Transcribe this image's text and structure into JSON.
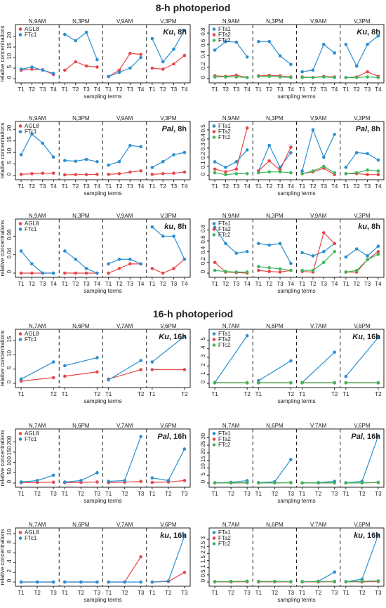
{
  "titles": {
    "p8": "8-h photoperiod",
    "p16": "16-h photoperiod"
  },
  "colors": {
    "AGL8": "#e8474a",
    "FTc1": "#2a8fd0",
    "FTa1": "#2a8fd0",
    "FTa2": "#e8474a",
    "FTc2": "#3cb85a"
  },
  "chart_data": [
    {
      "type": "line",
      "label": "Ku, 8h",
      "groups": [
        "N,9AM",
        "N,3PM",
        "V,9AM",
        "V,3PM"
      ],
      "terms": [
        "T1",
        "T2",
        "T3",
        "T4"
      ],
      "xlabel": "sampling terms",
      "ylabel": "relative concentrations",
      "yticks": [
        0,
        5,
        10,
        15,
        20
      ],
      "ylim": [
        0,
        23
      ],
      "series": [
        {
          "name": "AGL8",
          "values": [
            [
              4,
              4.5,
              4.2,
              2
            ],
            [
              4,
              8,
              6,
              5.5
            ],
            [
              1,
              4,
              12,
              11.5
            ],
            [
              5,
              4.5,
              7,
              11
            ]
          ]
        },
        {
          "name": "FTc1",
          "values": [
            [
              4.5,
              5.5,
              4,
              2.5
            ],
            [
              21,
              18,
              22,
              9
            ],
            [
              1,
              3,
              5,
              10
            ],
            [
              19,
              8,
              14,
              23
            ]
          ]
        }
      ]
    },
    {
      "type": "line",
      "label": "Ku, 8h",
      "groups": [
        "N,9AM",
        "N,3PM",
        "V,9AM",
        "V,3PM"
      ],
      "terms": [
        "T1",
        "T2",
        "T3",
        "T4"
      ],
      "xlabel": "sampling terms",
      "ylabel": "",
      "yticks": [
        0,
        0.2,
        0.4,
        0.6,
        0.8
      ],
      "ylim": [
        0,
        0.85
      ],
      "series": [
        {
          "name": "FTa1",
          "values": [
            [
              0.5,
              0.65,
              0.64,
              0.38
            ],
            [
              0.65,
              0.65,
              0.4,
              0.25
            ],
            [
              0.12,
              0.15,
              0.6,
              0.45
            ],
            [
              0.6,
              0.22,
              0.6,
              0.75
            ]
          ]
        },
        {
          "name": "FTa2",
          "values": [
            [
              0.05,
              0.04,
              0.06,
              0.02
            ],
            [
              0.05,
              0.06,
              0.05,
              0.03
            ],
            [
              0.03,
              0.02,
              0.04,
              0.03
            ],
            [
              0.02,
              0.03,
              0.12,
              0.04
            ]
          ]
        },
        {
          "name": "FTc2",
          "values": [
            [
              0.03,
              0.03,
              0.03,
              0.02
            ],
            [
              0.04,
              0.04,
              0.03,
              0.02
            ],
            [
              0.02,
              0.02,
              0.03,
              0.02
            ],
            [
              0.02,
              0.02,
              0.03,
              0.02
            ]
          ]
        }
      ]
    },
    {
      "type": "line",
      "label": "Pal, 8h",
      "groups": [
        "N,9AM",
        "N,3PM",
        "V,9AM",
        "V,3PM"
      ],
      "terms": [
        "T1",
        "T2",
        "T3",
        "T4"
      ],
      "xlabel": "sampling terms",
      "ylabel": "relative concentrations",
      "yticks": [
        0,
        5,
        10,
        15,
        20
      ],
      "ylim": [
        0,
        21
      ],
      "series": [
        {
          "name": "AGL8",
          "values": [
            [
              0.5,
              0.8,
              1,
              1
            ],
            [
              0.3,
              0.4,
              0.4,
              0.5
            ],
            [
              0.5,
              0.8,
              1.5,
              2
            ],
            [
              0.5,
              0.8,
              1,
              1.5
            ]
          ]
        },
        {
          "name": "FTc1",
          "values": [
            [
              9,
              18,
              14,
              8
            ],
            [
              6.5,
              6.2,
              7,
              6
            ],
            [
              4.5,
              6,
              13,
              12.5
            ],
            [
              3.5,
              6,
              9,
              10
            ]
          ]
        }
      ]
    },
    {
      "type": "line",
      "label": "Pal, 8h",
      "groups": [
        "N,9AM",
        "N,3PM",
        "V,9AM",
        "V,3PM"
      ],
      "terms": [
        "T1",
        "T2",
        "T3",
        "T4"
      ],
      "xlabel": "sampling terms",
      "ylabel": "",
      "yticks": [
        0,
        0.1,
        0.2,
        0.3,
        0.4,
        0.5
      ],
      "ylim": [
        0,
        0.53
      ],
      "series": [
        {
          "name": "FTa1",
          "values": [
            [
              0.15,
              0.09,
              0.15,
              0.28
            ],
            [
              0.05,
              0.33,
              0.09,
              0.25
            ],
            [
              0.05,
              0.5,
              0.2,
              0.45
            ],
            [
              0.09,
              0.25,
              0.24,
              0.17
            ]
          ]
        },
        {
          "name": "FTa2",
          "values": [
            [
              0.07,
              0.04,
              0.07,
              0.52
            ],
            [
              0.05,
              0.16,
              0.06,
              0.31
            ],
            [
              0.02,
              0.04,
              0.08,
              0.01
            ],
            [
              0.02,
              0.02,
              0.01,
              0.01
            ]
          ]
        },
        {
          "name": "FTc2",
          "values": [
            [
              0.03,
              0.01,
              0.02,
              0.02
            ],
            [
              0.03,
              0.04,
              0.04,
              0.03
            ],
            [
              0.02,
              0.05,
              0.1,
              0.03
            ],
            [
              0.02,
              0.03,
              0.06,
              0.05
            ]
          ]
        }
      ]
    },
    {
      "type": "line",
      "label": "ku, 8h",
      "groups": [
        "N,9AM",
        "N,3PM",
        "V,9AM",
        "V,3PM"
      ],
      "terms": [
        "T1",
        "T2",
        "T3",
        "T4"
      ],
      "xlabel": "sampling terms",
      "ylabel": "relative concentrations",
      "yticks": [
        0,
        0.04,
        0.08
      ],
      "ylim": [
        0,
        0.105
      ],
      "series": [
        {
          "name": "AGL8",
          "values": [
            [
              0,
              0,
              0,
              0
            ],
            [
              0,
              0,
              0,
              0
            ],
            [
              0,
              0.01,
              0.02,
              0.02
            ],
            [
              0.01,
              0,
              0.01,
              0.03
            ]
          ]
        },
        {
          "name": "FTc1",
          "values": [
            [
              0.048,
              0.02,
              0,
              0
            ],
            [
              0.048,
              0.03,
              0.01,
              0
            ],
            [
              0.02,
              0.03,
              0.03,
              0.02
            ],
            [
              0.1,
              0.08,
              0.08,
              0.03
            ]
          ]
        }
      ]
    },
    {
      "type": "line",
      "label": "ku, 8h",
      "groups": [
        "N,9AM",
        "N,3PM",
        "V,9AM",
        "V,3PM"
      ],
      "terms": [
        "T1",
        "T2",
        "T3",
        "T4"
      ],
      "xlabel": "sampling terms",
      "ylabel": "",
      "yticks": [
        0,
        0.2,
        0.4,
        0.6,
        0.8
      ],
      "ylim": [
        0,
        0.9
      ],
      "series": [
        {
          "name": "FTa1",
          "values": [
            [
              0.85,
              0.55,
              0.37,
              0.4
            ],
            [
              0.55,
              0.52,
              0.55,
              0.18
            ],
            [
              0.38,
              0.32,
              0.4,
              0.55
            ],
            [
              0.3,
              0.45,
              0.32,
              0.5
            ]
          ]
        },
        {
          "name": "FTa2",
          "values": [
            [
              0.2,
              0.02,
              0.01,
              0
            ],
            [
              0.05,
              0.03,
              0.02,
              0.05
            ],
            [
              0.03,
              0.02,
              0.75,
              0.55
            ],
            [
              0.02,
              0.02,
              0.25,
              0.4
            ]
          ]
        },
        {
          "name": "FTc2",
          "values": [
            [
              0.05,
              0.03,
              0.02,
              0.02
            ],
            [
              0.12,
              0.1,
              0.08,
              0.05
            ],
            [
              0.05,
              0.05,
              0.2,
              0.4
            ],
            [
              0.02,
              0.05,
              0.25,
              0.35
            ]
          ]
        }
      ]
    },
    {
      "type": "line",
      "label": "Ku, 16h",
      "groups": [
        "N,7AM",
        "N,6PM",
        "V,7AM",
        "V,6PM"
      ],
      "terms": [
        "T1",
        "T2"
      ],
      "xlabel": "sampling terms",
      "ylabel": "relative concentrations",
      "yticks": [
        0,
        5,
        10,
        15
      ],
      "ylim": [
        0,
        17
      ],
      "series": [
        {
          "name": "AGL8",
          "values": [
            [
              0.8,
              2
            ],
            [
              2.5,
              4
            ],
            [
              1.5,
              4.8
            ],
            [
              4.8,
              4.8
            ]
          ]
        },
        {
          "name": "FTc1",
          "values": [
            [
              1.5,
              7.5
            ],
            [
              6.2,
              9
            ],
            [
              1.2,
              8
            ],
            [
              7.5,
              16.5
            ]
          ]
        }
      ]
    },
    {
      "type": "line",
      "label": "Ku, 16h",
      "groups": [
        "N,7AM",
        "N,6PM",
        "V,7AM",
        "V,6PM"
      ],
      "terms": [
        "T1",
        "T2"
      ],
      "xlabel": "sampling terms",
      "ylabel": "",
      "yticks": [
        0,
        1,
        2,
        3,
        4,
        5
      ],
      "ylim": [
        0,
        5.6
      ],
      "series": [
        {
          "name": "FTa1",
          "values": [
            [
              0.1,
              5.5
            ],
            [
              0.3,
              2.6
            ],
            [
              0.1,
              3.6
            ],
            [
              0.8,
              5.3
            ]
          ]
        },
        {
          "name": "FTa2",
          "values": [
            [
              0.05,
              0.05
            ],
            [
              0.05,
              0.05
            ],
            [
              0.05,
              0.05
            ],
            [
              0.05,
              0.05
            ]
          ]
        },
        {
          "name": "FTc2",
          "values": [
            [
              0.08,
              0.08
            ],
            [
              0.08,
              0.08
            ],
            [
              0.08,
              0.08
            ],
            [
              0.08,
              0.08
            ]
          ]
        }
      ]
    },
    {
      "type": "line",
      "label": "Pal, 16h",
      "groups": [
        "N,7AM",
        "N,6PM",
        "V,7AM",
        "V,6PM"
      ],
      "terms": [
        "T1",
        "T2",
        "T3"
      ],
      "xlabel": "sampling terms",
      "ylabel": "relative concentrations",
      "yticks": [
        0,
        50,
        100,
        150,
        200
      ],
      "ylim": [
        0,
        235
      ],
      "series": [
        {
          "name": "AGL8",
          "values": [
            [
              2,
              3,
              4
            ],
            [
              2,
              3,
              5
            ],
            [
              2,
              4,
              8
            ],
            [
              3,
              5,
              12
            ]
          ]
        },
        {
          "name": "FTc1",
          "values": [
            [
              5,
              12,
              38
            ],
            [
              5,
              12,
              50
            ],
            [
              8,
              12,
              225
            ],
            [
              25,
              12,
              165
            ]
          ]
        }
      ]
    },
    {
      "type": "line",
      "label": "Pal, 16h",
      "groups": [
        "N,7AM",
        "N,6PM",
        "V,7AM",
        "V,6PM"
      ],
      "terms": [
        "T1",
        "T2",
        "T3"
      ],
      "xlabel": "sampling terms",
      "ylabel": "",
      "yticks": [
        0,
        5,
        10,
        15,
        20,
        25,
        30
      ],
      "ylim": [
        0,
        32
      ],
      "series": [
        {
          "name": "FTa1",
          "values": [
            [
              0.2,
              0.5,
              1.6
            ],
            [
              0.3,
              0.8,
              15.5
            ],
            [
              0.1,
              0.3,
              1.1
            ],
            [
              0.2,
              1.1,
              31
            ]
          ]
        },
        {
          "name": "FTa2",
          "values": [
            [
              0.05,
              0.05,
              0.1
            ],
            [
              0.05,
              0.1,
              0.2
            ],
            [
              0.05,
              0.05,
              0.1
            ],
            [
              0.05,
              0.1,
              0.3
            ]
          ]
        },
        {
          "name": "FTc2",
          "values": [
            [
              0.1,
              0.1,
              0.3
            ],
            [
              0.1,
              0.1,
              0.3
            ],
            [
              0.1,
              0.1,
              0.2
            ],
            [
              0.1,
              0.1,
              0.5
            ]
          ]
        }
      ]
    },
    {
      "type": "line",
      "label": "ku, 16h",
      "groups": [
        "N,7AM",
        "N,6PM",
        "V,7AM",
        "V,6PM"
      ],
      "terms": [
        "T1",
        "T2",
        "T3"
      ],
      "xlabel": "sampling terms",
      "ylabel": "relative concentrations",
      "yticks": [
        0,
        2,
        4,
        6,
        8,
        10
      ],
      "ylim": [
        0,
        10
      ],
      "series": [
        {
          "name": "AGL8",
          "values": [
            [
              0,
              0,
              0
            ],
            [
              0,
              0,
              0
            ],
            [
              0,
              0,
              5.2
            ],
            [
              0,
              0.1,
              2
            ]
          ]
        },
        {
          "name": "FTc1",
          "values": [
            [
              0,
              0,
              0
            ],
            [
              0,
              0,
              0
            ],
            [
              0,
              0,
              0
            ],
            [
              0,
              0.2,
              9.5
            ]
          ]
        }
      ]
    },
    {
      "type": "line",
      "label": "ku, 16h",
      "groups": [
        "N,7AM",
        "N,6PM",
        "V,7AM",
        "V,6PM"
      ],
      "terms": [
        "T1",
        "T2",
        "T3"
      ],
      "xlabel": "sampling terms",
      "ylabel": "",
      "yticks": [
        0,
        0.5,
        1,
        1.5,
        2,
        2.5,
        3
      ],
      "ylim": [
        0,
        3.4
      ],
      "series": [
        {
          "name": "FTa1",
          "values": [
            [
              0.02,
              0.02,
              0.05
            ],
            [
              0.02,
              0.03,
              0.02
            ],
            [
              0.02,
              0.05,
              0.7
            ],
            [
              0.02,
              0.2,
              3.3
            ]
          ]
        },
        {
          "name": "FTa2",
          "values": [
            [
              0.01,
              0.01,
              0.02
            ],
            [
              0.01,
              0.01,
              0.01
            ],
            [
              0.01,
              0.01,
              0.02
            ],
            [
              0.01,
              0.01,
              0.03
            ]
          ]
        },
        {
          "name": "FTc2",
          "values": [
            [
              0.03,
              0.04,
              0.06
            ],
            [
              0.05,
              0.04,
              0.03
            ],
            [
              0.03,
              0.04,
              0.04
            ],
            [
              0.03,
              0.06,
              0.08
            ]
          ]
        }
      ]
    }
  ]
}
